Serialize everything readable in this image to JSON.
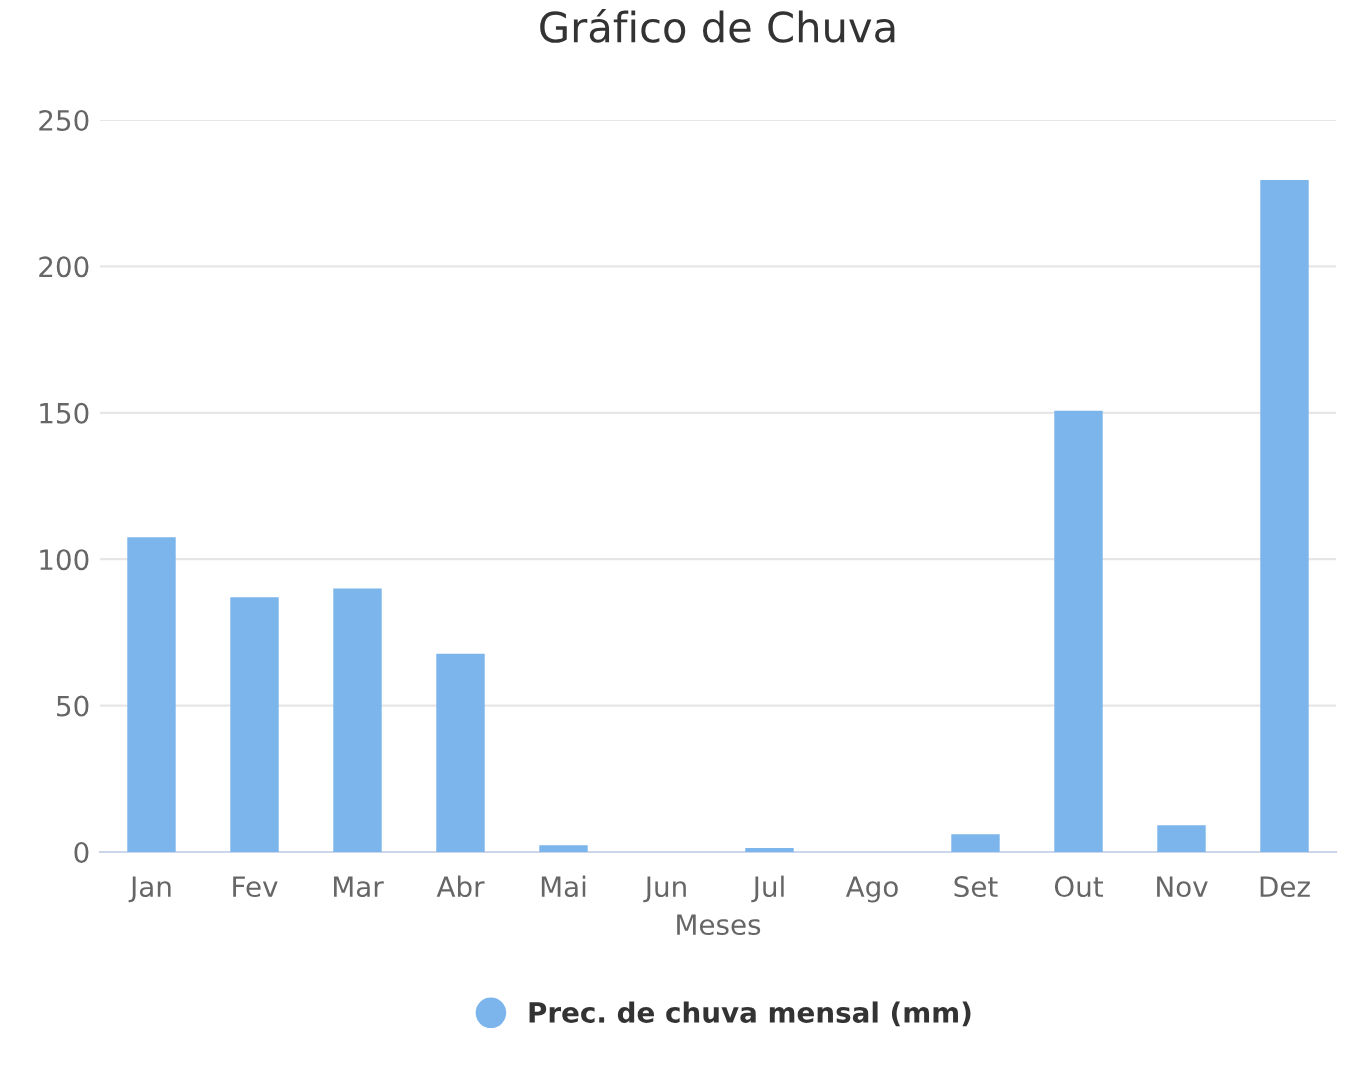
{
  "chart_data": {
    "type": "bar",
    "title": "Gráfico de Chuva",
    "xlabel": "Meses",
    "categories": [
      "Jan",
      "Fev",
      "Mar",
      "Abr",
      "Mai",
      "Jun",
      "Jul",
      "Ago",
      "Set",
      "Out",
      "Nov",
      "Dez"
    ],
    "series": [
      {
        "name": "Prec. de chuva mensal (mm)",
        "color": "#7cb5ec",
        "values": [
          107.5,
          87,
          90,
          67.7,
          2.3,
          null,
          1.4,
          null,
          6.1,
          150.7,
          9.1,
          229.5
        ]
      }
    ],
    "ylim": [
      0,
      250
    ],
    "yticks": [
      0,
      50,
      100,
      150,
      200,
      250
    ],
    "grid": "y",
    "legend": "bottom"
  }
}
